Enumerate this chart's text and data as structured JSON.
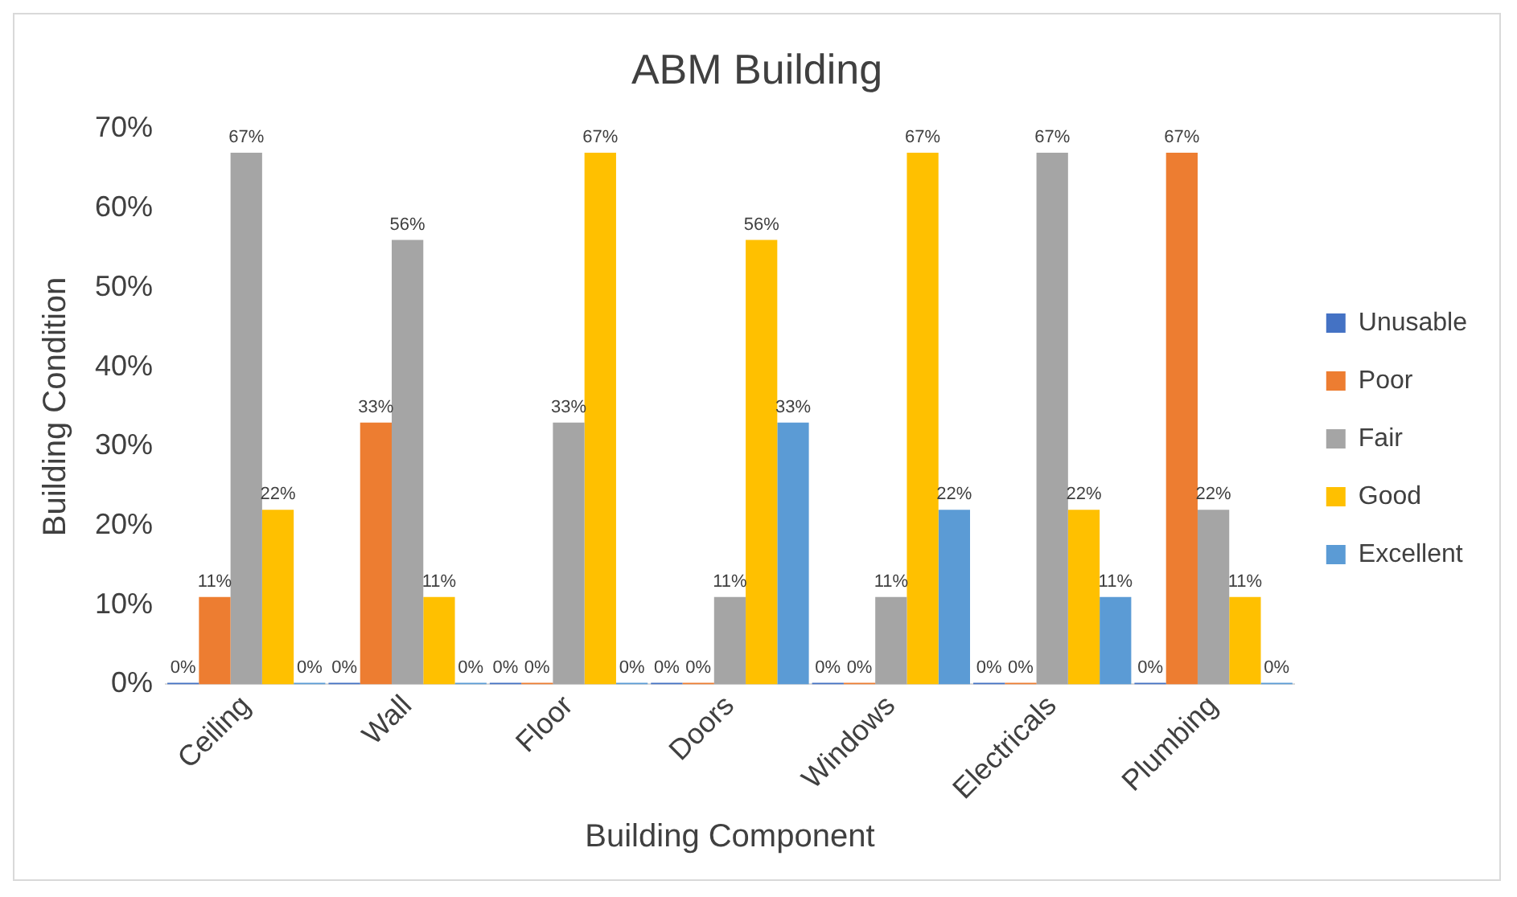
{
  "chart_data": {
    "type": "bar",
    "title": "ABM Building",
    "xlabel": "Building Component",
    "ylabel": "Building Condition",
    "categories": [
      "Ceiling",
      "Wall",
      "Floor",
      "Doors",
      "Windows",
      "Electricals",
      "Plumbing"
    ],
    "ylim": [
      0,
      70
    ],
    "yticks": [
      {
        "value": 0,
        "label": "0%"
      },
      {
        "value": 10,
        "label": "10%"
      },
      {
        "value": 20,
        "label": "20%"
      },
      {
        "value": 30,
        "label": "30%"
      },
      {
        "value": 40,
        "label": "40%"
      },
      {
        "value": 50,
        "label": "50%"
      },
      {
        "value": 60,
        "label": "60%"
      },
      {
        "value": 70,
        "label": "70%"
      }
    ],
    "grid": false,
    "legend": "right",
    "series": [
      {
        "name": "Unusable",
        "color": "#4472c4",
        "values": [
          0,
          0,
          0,
          0,
          0,
          0,
          0
        ],
        "value_labels": [
          "0%",
          "0%",
          "0%",
          "0%",
          "0%",
          "0%",
          "0%"
        ]
      },
      {
        "name": "Poor",
        "color": "#ed7d31",
        "values": [
          11,
          33,
          0,
          0,
          0,
          0,
          67
        ],
        "value_labels": [
          "11%",
          "33%",
          "0%",
          "0%",
          "0%",
          "0%",
          "67%"
        ]
      },
      {
        "name": "Fair",
        "color": "#a5a5a5",
        "values": [
          67,
          56,
          33,
          11,
          11,
          67,
          22
        ],
        "value_labels": [
          "67%",
          "56%",
          "33%",
          "11%",
          "11%",
          "67%",
          "22%"
        ]
      },
      {
        "name": "Good",
        "color": "#ffc000",
        "values": [
          22,
          11,
          67,
          56,
          67,
          22,
          11
        ],
        "value_labels": [
          "22%",
          "11%",
          "67%",
          "56%",
          "67%",
          "22%",
          "11%"
        ]
      },
      {
        "name": "Excellent",
        "color": "#5b9bd5",
        "values": [
          0,
          0,
          0,
          33,
          22,
          11,
          0
        ],
        "value_labels": [
          "0%",
          "0%",
          "0%",
          "33%",
          "22%",
          "11%",
          "0%"
        ]
      }
    ]
  }
}
